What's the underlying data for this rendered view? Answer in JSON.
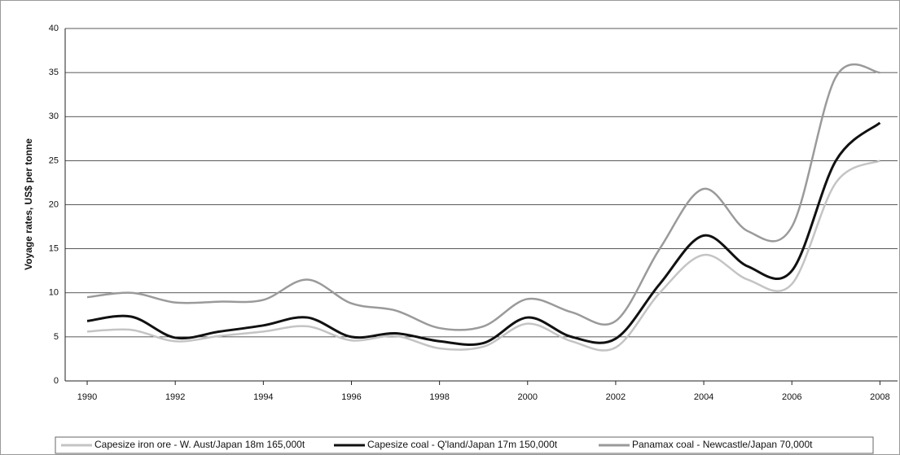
{
  "chart_data": {
    "type": "line",
    "y_label": "Voyage rates, US$ per tonne",
    "x": [
      1990,
      1991,
      1992,
      1993,
      1994,
      1995,
      1996,
      1997,
      1998,
      1999,
      2000,
      2001,
      2002,
      2003,
      2004,
      2005,
      2006,
      2007,
      2008
    ],
    "series": [
      {
        "name": "Capesize iron ore - W. Aust/Japan 18m 165,000t",
        "color": "#c4c4c4",
        "values": [
          5.6,
          5.8,
          4.5,
          5.1,
          5.6,
          6.2,
          4.6,
          5.1,
          3.7,
          3.9,
          6.5,
          4.5,
          3.8,
          10,
          14.3,
          11.5,
          11,
          22.5,
          25
        ]
      },
      {
        "name": "Capesize coal - Q'land/Japan 17m 150,000t",
        "color": "#111111",
        "values": [
          6.8,
          7.3,
          4.9,
          5.6,
          6.3,
          7.2,
          5.0,
          5.4,
          4.5,
          4.3,
          7.2,
          5.0,
          4.8,
          11,
          16.5,
          13,
          12.5,
          25,
          29.3
        ]
      },
      {
        "name": "Panamax coal - Newcastle/Japan 70,000t",
        "color": "#9a9a9a",
        "values": [
          9.5,
          10,
          8.9,
          9.0,
          9.2,
          11.5,
          8.8,
          8,
          6,
          6.2,
          9.3,
          7.8,
          6.8,
          15,
          21.8,
          17,
          17.5,
          34.5,
          35
        ]
      }
    ],
    "xlim": [
      1989.5,
      2008.4
    ],
    "xticks": [
      1990,
      1992,
      1994,
      1996,
      1998,
      2000,
      2002,
      2004,
      2006,
      2008
    ],
    "ylim": [
      0,
      40
    ],
    "yticks": [
      0,
      5,
      10,
      15,
      20,
      25,
      30,
      35,
      40
    ],
    "grid": true
  }
}
